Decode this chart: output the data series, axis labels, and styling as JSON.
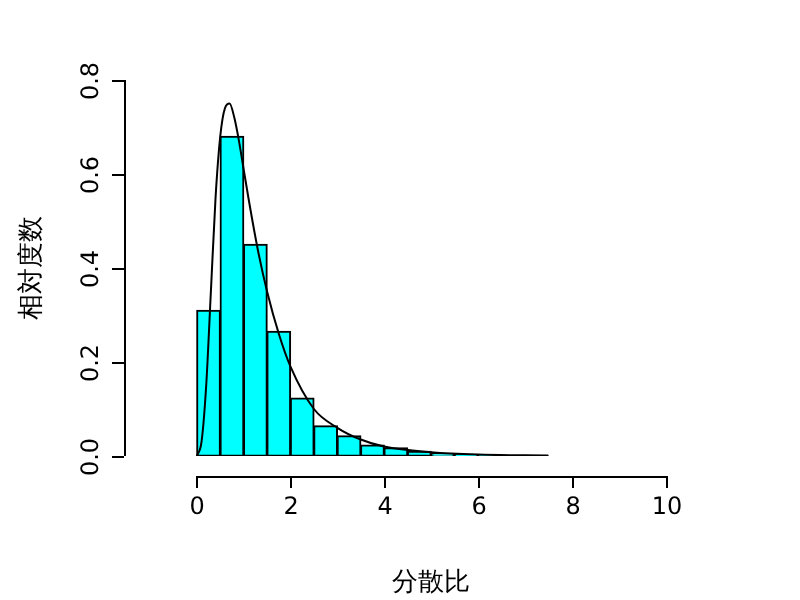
{
  "chart_data": {
    "type": "histogram",
    "xlabel": "分散比",
    "ylabel": "相対度数",
    "bins": [
      0,
      0.5,
      1,
      1.5,
      2,
      2.5,
      3,
      3.5,
      4,
      4.5,
      5,
      5.5,
      6,
      6.5,
      7,
      7.5
    ],
    "values": [
      0.31,
      0.68,
      0.45,
      0.265,
      0.123,
      0.064,
      0.043,
      0.023,
      0.017,
      0.01,
      0.005,
      0.003,
      0.002,
      0.001,
      0.001
    ],
    "color": "#00ffff",
    "series": [
      {
        "type": "line",
        "color": "#000000",
        "x": [
          0,
          0.1,
          0.2,
          0.3,
          0.4,
          0.5,
          0.6,
          0.7,
          0.8,
          0.9,
          1,
          1.1,
          1.3,
          1.5,
          1.75,
          2,
          2.5,
          3,
          3.5,
          4,
          5,
          6,
          7.5
        ],
        "values": [
          0,
          0.03,
          0.15,
          0.35,
          0.55,
          0.68,
          0.74,
          0.75,
          0.72,
          0.67,
          0.61,
          0.55,
          0.44,
          0.35,
          0.26,
          0.19,
          0.1,
          0.06,
          0.035,
          0.02,
          0.008,
          0.003,
          0.001
        ]
      }
    ],
    "xlim": [
      0,
      10
    ],
    "xticks": [
      0,
      2,
      4,
      6,
      8,
      10
    ],
    "ylim": [
      0,
      0.8
    ],
    "yticks": [
      {
        "value": 0,
        "label": "0.0"
      },
      0.2,
      0.4,
      0.6,
      0.8
    ],
    "grid": false,
    "legend": false,
    "marker": "none"
  }
}
